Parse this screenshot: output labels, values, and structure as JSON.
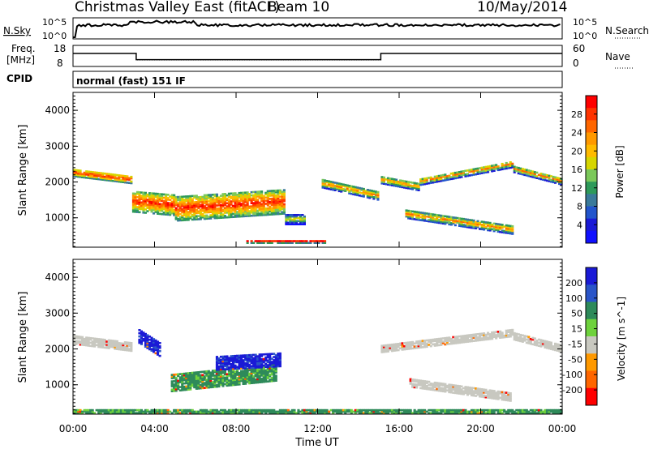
{
  "header": {
    "station": "Christmas Valley East (fitACF)",
    "beam": "Beam 10",
    "date": "10/May/2014"
  },
  "noise_panel": {
    "left_label": "N.Sky",
    "left_ticks": [
      "10^5",
      "10^0"
    ],
    "right_label": "N.Search",
    "right_ticks": [
      "10^5",
      "10^0"
    ]
  },
  "freq_panel": {
    "left_label_1": "Freq.",
    "left_label_2": "[MHz]",
    "left_ticks": [
      "18",
      "8"
    ],
    "right_label": "Nave",
    "right_ticks": [
      "60",
      "0"
    ],
    "freq_steps": [
      {
        "from_hour": 0.0,
        "to_hour": 3.1,
        "value_mhz": 14.2
      },
      {
        "from_hour": 3.1,
        "to_hour": 15.1,
        "value_mhz": 11.2
      },
      {
        "from_hour": 15.1,
        "to_hour": 24.0,
        "value_mhz": 14.2
      }
    ]
  },
  "cpid": {
    "label": "CPID",
    "value": "normal (fast) 151 IF"
  },
  "x_axis": {
    "title": "Time UT",
    "ticks": [
      "00:00",
      "04:00",
      "08:00",
      "12:00",
      "16:00",
      "20:00",
      "00:00"
    ],
    "tick_hours": [
      0,
      4,
      8,
      12,
      16,
      20,
      24
    ],
    "range_hours": [
      0,
      24
    ]
  },
  "chart_data": [
    {
      "type": "heatmap",
      "title": "Power",
      "ylabel": "Slant Range [km]",
      "y_ticks": [
        1000,
        2000,
        3000,
        4000
      ],
      "ylim": [
        180,
        4500
      ],
      "xlim_hours": [
        0,
        24
      ],
      "colorbar": {
        "label": "Power [dB]",
        "ticks": [
          "28",
          "24",
          "20",
          "16",
          "12",
          "8",
          "4"
        ],
        "colors": [
          "#ff0000",
          "#ff3300",
          "#ff6600",
          "#ff9900",
          "#ffbb00",
          "#d6d600",
          "#7bc85a",
          "#2e9a5a",
          "#3a7a9a",
          "#2255cc",
          "#1a1ad6",
          "#1010ff"
        ]
      },
      "bands": [
        {
          "from_hour": 0.0,
          "to_hour": 2.9,
          "range_start_km": 2300,
          "range_end_km": 2100,
          "width_km": 220,
          "level": "high"
        },
        {
          "from_hour": 2.9,
          "to_hour": 5.0,
          "range_start_km": 1500,
          "range_end_km": 1400,
          "width_km": 600,
          "level": "high"
        },
        {
          "from_hour": 5.0,
          "to_hour": 10.4,
          "range_start_km": 1300,
          "range_end_km": 1500,
          "width_km": 700,
          "level": "high"
        },
        {
          "from_hour": 10.4,
          "to_hour": 11.4,
          "range_start_km": 1000,
          "range_end_km": 1000,
          "width_km": 300,
          "level": "low"
        },
        {
          "from_hour": 12.2,
          "to_hour": 15.0,
          "range_start_km": 2000,
          "range_end_km": 1650,
          "width_km": 250,
          "level": "mid"
        },
        {
          "from_hour": 15.1,
          "to_hour": 17.0,
          "range_start_km": 2100,
          "range_end_km": 1900,
          "width_km": 220,
          "level": "mid"
        },
        {
          "from_hour": 17.0,
          "to_hour": 21.6,
          "range_start_km": 2050,
          "range_end_km": 2550,
          "width_km": 200,
          "level": "mid"
        },
        {
          "from_hour": 21.6,
          "to_hour": 24.0,
          "range_start_km": 2400,
          "range_end_km": 2050,
          "width_km": 200,
          "level": "mid"
        },
        {
          "from_hour": 16.3,
          "to_hour": 21.6,
          "range_start_km": 1150,
          "range_end_km": 700,
          "width_km": 250,
          "level": "mid"
        },
        {
          "from_hour": 8.5,
          "to_hour": 12.5,
          "range_start_km": 380,
          "range_end_km": 380,
          "width_km": 100,
          "level": "high"
        }
      ]
    },
    {
      "type": "heatmap",
      "title": "Velocity",
      "ylabel": "Slant Range [km]",
      "y_ticks": [
        1000,
        2000,
        3000,
        4000
      ],
      "ylim": [
        180,
        4500
      ],
      "xlim_hours": [
        0,
        24
      ],
      "colorbar": {
        "label": "Velocity [m s^-1]",
        "ticks": [
          "200",
          "100",
          "50",
          "15",
          "-15",
          "-50",
          "-100",
          "-200"
        ],
        "colors": [
          "#1a1ad6",
          "#2a55c8",
          "#2e8a5a",
          "#6ed23c",
          "#c8c8c0",
          "#ff9900",
          "#ff6600",
          "#ff0000"
        ]
      },
      "bands": [
        {
          "from_hour": 0.0,
          "to_hour": 2.9,
          "range_start_km": 2300,
          "range_end_km": 2100,
          "width_km": 260,
          "class": "-15..15"
        },
        {
          "from_hour": 3.2,
          "to_hour": 4.3,
          "range_start_km": 2400,
          "range_end_km": 2000,
          "width_km": 400,
          "class": "100..200"
        },
        {
          "from_hour": 4.8,
          "to_hour": 10.0,
          "range_start_km": 1100,
          "range_end_km": 1400,
          "width_km": 500,
          "class": "15..50"
        },
        {
          "from_hour": 7.0,
          "to_hour": 10.2,
          "range_start_km": 1650,
          "range_end_km": 1750,
          "width_km": 400,
          "class": "100..200"
        },
        {
          "from_hour": 15.1,
          "to_hour": 21.6,
          "range_start_km": 2050,
          "range_end_km": 2500,
          "width_km": 220,
          "class": "-15..15"
        },
        {
          "from_hour": 21.6,
          "to_hour": 24.0,
          "range_start_km": 2400,
          "range_end_km": 2050,
          "width_km": 220,
          "class": "-15..15"
        },
        {
          "from_hour": 16.5,
          "to_hour": 21.5,
          "range_start_km": 1100,
          "range_end_km": 700,
          "width_km": 250,
          "class": "-15..15"
        },
        {
          "from_hour": 0.0,
          "to_hour": 24.0,
          "range_start_km": 300,
          "range_end_km": 300,
          "width_km": 120,
          "class": "15..50"
        }
      ]
    }
  ]
}
